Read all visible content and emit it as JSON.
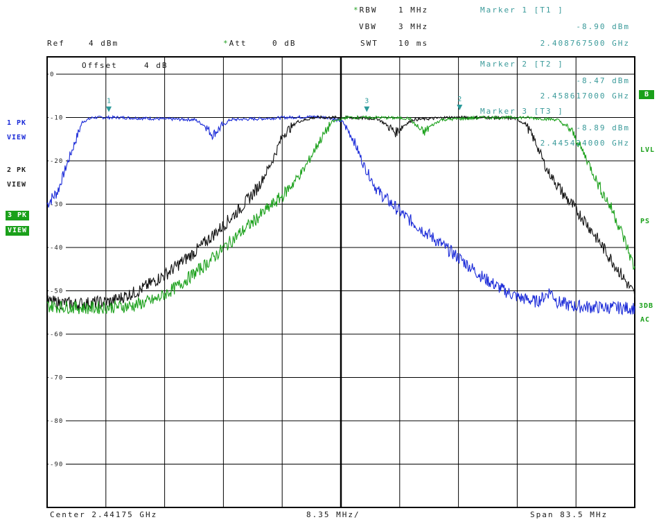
{
  "header": {
    "rbw_label": "RBW",
    "rbw_value": "1 MHz",
    "vbw_label": "VBW",
    "vbw_value": "3 MHz",
    "swt_label": "SWT",
    "swt_value": "10 ms",
    "ref_label": "Ref",
    "ref_value": "4 dBm",
    "att_label": "Att",
    "att_value": "0 dB",
    "offset_label": "Offset",
    "offset_value": "4 dB",
    "star": "*"
  },
  "markers": [
    {
      "title": "Marker 1 [T1 ]",
      "level": "-8.90 dBm",
      "freq": "2.408767500 GHz",
      "id": "1",
      "x_ghz": 2.4087675,
      "y_dbm": -8.9
    },
    {
      "title": "Marker 2 [T2 ]",
      "level": "-8.47 dBm",
      "freq": "2.458617000 GHz",
      "id": "2",
      "x_ghz": 2.458617,
      "y_dbm": -8.47
    },
    {
      "title": "Marker 3 [T3 ]",
      "level": "-8.89 dBm",
      "freq": "2.445424000 GHz",
      "id": "3",
      "x_ghz": 2.445424,
      "y_dbm": -8.89
    }
  ],
  "left_badges": [
    {
      "line1": "1 PK",
      "line2": "VIEW",
      "color": "#1a2ad8"
    },
    {
      "line1": "2 PK",
      "line2": "VIEW",
      "color": "#222222"
    },
    {
      "line1": "3 PK",
      "line2": "VIEW",
      "color": "#1aa01a"
    }
  ],
  "right_labels": {
    "b": "B",
    "lvl": "LVL",
    "ps": "PS",
    "db3": "3DB",
    "ac": "AC"
  },
  "footer": {
    "center": "Center 2.44175 GHz",
    "div": "8.35 MHz/",
    "span": "Span 83.5 MHz"
  },
  "chart_data": {
    "type": "line",
    "x_unit": "GHz",
    "x_range": [
      2.4,
      2.4835
    ],
    "y_range": [
      -100,
      4
    ],
    "y_ticks": [
      0,
      -10,
      -20,
      -30,
      -40,
      -50,
      -60,
      -70,
      -80,
      -90
    ],
    "grid": true,
    "series": [
      {
        "color": "#1a2ad8",
        "points": [
          [
            2.4,
            -30
          ],
          [
            2.4015,
            -27
          ],
          [
            2.403,
            -20
          ],
          [
            2.405,
            -11
          ],
          [
            2.4065,
            -10
          ],
          [
            2.41,
            -10
          ],
          [
            2.416,
            -10.3
          ],
          [
            2.421,
            -10.5
          ],
          [
            2.4225,
            -12
          ],
          [
            2.4235,
            -14
          ],
          [
            2.4245,
            -12.5
          ],
          [
            2.426,
            -10.5
          ],
          [
            2.43,
            -10.3
          ],
          [
            2.434,
            -10
          ],
          [
            2.438,
            -9.8
          ],
          [
            2.44,
            -10
          ],
          [
            2.442,
            -11
          ],
          [
            2.4435,
            -15
          ],
          [
            2.445,
            -21
          ],
          [
            2.447,
            -27
          ],
          [
            2.451,
            -33
          ],
          [
            2.455,
            -38
          ],
          [
            2.459,
            -43
          ],
          [
            2.462,
            -47
          ],
          [
            2.465,
            -50
          ],
          [
            2.467,
            -51.5
          ],
          [
            2.4695,
            -52.5
          ],
          [
            2.4705,
            -51.5
          ],
          [
            2.4715,
            -50
          ],
          [
            2.4725,
            -52.5
          ],
          [
            2.4745,
            -53.5
          ],
          [
            2.478,
            -53.8
          ],
          [
            2.4835,
            -54
          ]
        ]
      },
      {
        "color": "#111111",
        "points": [
          [
            2.4,
            -52.5
          ],
          [
            2.404,
            -53
          ],
          [
            2.409,
            -52.5
          ],
          [
            2.413,
            -50
          ],
          [
            2.417,
            -46
          ],
          [
            2.421,
            -41
          ],
          [
            2.425,
            -35
          ],
          [
            2.428,
            -30
          ],
          [
            2.43,
            -26
          ],
          [
            2.432,
            -20
          ],
          [
            2.4335,
            -14
          ],
          [
            2.4355,
            -11
          ],
          [
            2.438,
            -10
          ],
          [
            2.442,
            -10
          ],
          [
            2.447,
            -10.3
          ],
          [
            2.4485,
            -12
          ],
          [
            2.4495,
            -13.5
          ],
          [
            2.4505,
            -12
          ],
          [
            2.452,
            -10.5
          ],
          [
            2.457,
            -10
          ],
          [
            2.462,
            -10
          ],
          [
            2.4665,
            -10.2
          ],
          [
            2.468,
            -11.5
          ],
          [
            2.4695,
            -16
          ],
          [
            2.471,
            -22
          ],
          [
            2.4735,
            -28
          ],
          [
            2.4765,
            -34
          ],
          [
            2.479,
            -40
          ],
          [
            2.4815,
            -46
          ],
          [
            2.4835,
            -51
          ]
        ]
      },
      {
        "color": "#1aa01a",
        "points": [
          [
            2.4,
            -53.5
          ],
          [
            2.406,
            -54
          ],
          [
            2.412,
            -53.5
          ],
          [
            2.4155,
            -52
          ],
          [
            2.4185,
            -49
          ],
          [
            2.4225,
            -44
          ],
          [
            2.4265,
            -38
          ],
          [
            2.43,
            -33
          ],
          [
            2.4335,
            -28
          ],
          [
            2.4365,
            -22
          ],
          [
            2.4385,
            -16
          ],
          [
            2.4405,
            -11
          ],
          [
            2.4425,
            -10
          ],
          [
            2.447,
            -10
          ],
          [
            2.4515,
            -10.2
          ],
          [
            2.4525,
            -12
          ],
          [
            2.4535,
            -13.5
          ],
          [
            2.4545,
            -12
          ],
          [
            2.456,
            -10.5
          ],
          [
            2.462,
            -10
          ],
          [
            2.468,
            -10
          ],
          [
            2.4725,
            -10.5
          ],
          [
            2.4745,
            -13
          ],
          [
            2.4765,
            -19
          ],
          [
            2.4785,
            -26
          ],
          [
            2.4805,
            -32
          ],
          [
            2.482,
            -38
          ],
          [
            2.4835,
            -45
          ]
        ]
      }
    ]
  }
}
